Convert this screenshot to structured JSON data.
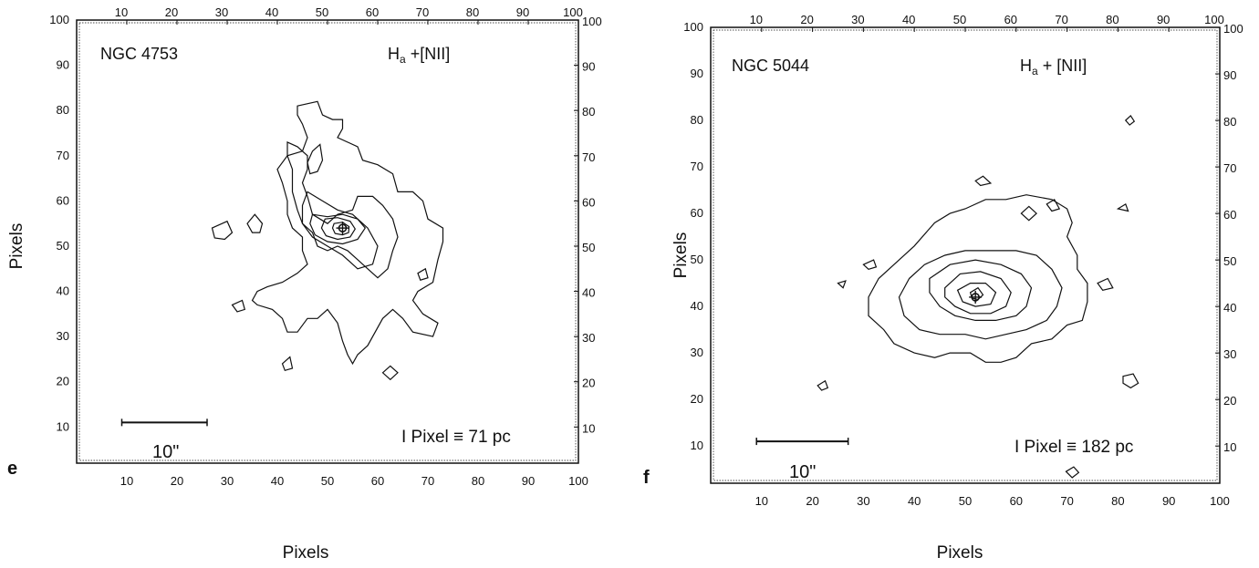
{
  "chart_data": [
    {
      "type": "contour",
      "panel_letter": "e",
      "object": "NGC 4753",
      "line_prefix": "H",
      "line_sub": "a",
      "line_suffix": " +[NII]",
      "scale_note": "I Pixel ≡ 71 pc",
      "scale_bar_label": "10\"",
      "scale_bar_pixels": [
        9,
        26
      ],
      "xlabel": "Pixels",
      "ylabel": "Pixels",
      "xlim": [
        0,
        100
      ],
      "ylim": [
        2,
        100
      ],
      "xticks": [
        10,
        20,
        30,
        40,
        50,
        60,
        70,
        80,
        90,
        100
      ],
      "yticks": [
        10,
        20,
        30,
        40,
        50,
        60,
        70,
        80,
        90,
        100
      ],
      "nucleus": [
        53,
        54
      ],
      "contours": [
        [
          [
            44,
            81
          ],
          [
            48,
            82
          ],
          [
            49,
            79
          ],
          [
            51,
            78
          ],
          [
            53,
            78
          ],
          [
            53,
            76
          ],
          [
            52,
            74
          ],
          [
            56,
            72
          ],
          [
            57,
            69
          ],
          [
            60,
            68
          ],
          [
            63,
            66
          ],
          [
            64,
            62
          ],
          [
            67,
            62
          ],
          [
            69,
            60
          ],
          [
            70,
            56
          ],
          [
            73,
            54
          ],
          [
            73,
            51
          ],
          [
            72,
            47
          ],
          [
            71,
            42
          ],
          [
            68,
            40
          ],
          [
            67,
            38
          ],
          [
            69,
            35
          ],
          [
            72,
            33
          ],
          [
            71,
            30
          ],
          [
            67,
            31
          ],
          [
            65,
            34
          ],
          [
            63,
            36
          ],
          [
            61,
            34
          ],
          [
            58,
            28
          ],
          [
            56,
            26
          ],
          [
            55,
            24
          ],
          [
            54,
            26
          ],
          [
            53,
            29
          ],
          [
            52,
            33
          ],
          [
            50,
            36
          ],
          [
            48,
            34
          ],
          [
            46,
            34
          ],
          [
            44,
            31
          ],
          [
            42,
            31
          ],
          [
            41,
            34
          ],
          [
            39,
            36
          ],
          [
            36,
            37
          ],
          [
            35,
            38
          ],
          [
            36,
            40
          ],
          [
            38,
            41
          ],
          [
            41,
            42
          ],
          [
            44,
            44
          ],
          [
            46,
            46
          ],
          [
            45,
            49
          ],
          [
            45,
            52
          ],
          [
            43,
            54
          ],
          [
            42,
            57
          ],
          [
            42,
            60
          ],
          [
            41,
            64
          ],
          [
            40,
            67
          ],
          [
            42,
            70
          ],
          [
            45,
            71
          ],
          [
            46,
            74
          ],
          [
            45,
            77
          ],
          [
            44,
            79
          ]
        ],
        [
          [
            42,
            73
          ],
          [
            44,
            72
          ],
          [
            46,
            70
          ],
          [
            46,
            67
          ],
          [
            45,
            64
          ],
          [
            46,
            61
          ],
          [
            47,
            57
          ],
          [
            50,
            55
          ],
          [
            52,
            57
          ],
          [
            55,
            58
          ],
          [
            56,
            61
          ],
          [
            59,
            61
          ],
          [
            61,
            59
          ],
          [
            63,
            56
          ],
          [
            64,
            52
          ],
          [
            63,
            49
          ],
          [
            62,
            45
          ],
          [
            60,
            43
          ],
          [
            58,
            45
          ],
          [
            56,
            47
          ],
          [
            54,
            49
          ],
          [
            52,
            50
          ],
          [
            50,
            49
          ],
          [
            48,
            50
          ],
          [
            47,
            53
          ],
          [
            45,
            55
          ],
          [
            44,
            58
          ],
          [
            43,
            62
          ],
          [
            43,
            67
          ],
          [
            42,
            70
          ]
        ],
        [
          [
            46,
            62
          ],
          [
            49,
            60
          ],
          [
            52,
            58
          ],
          [
            55,
            57
          ],
          [
            58,
            54
          ],
          [
            60,
            50
          ],
          [
            59,
            46
          ],
          [
            56,
            45
          ],
          [
            53,
            48
          ],
          [
            50,
            50
          ],
          [
            47,
            52
          ],
          [
            45,
            55
          ],
          [
            45,
            59
          ]
        ],
        [
          [
            47,
            57
          ],
          [
            50,
            56.5
          ],
          [
            53,
            57
          ],
          [
            56,
            56
          ],
          [
            57.5,
            54
          ],
          [
            56,
            51.5
          ],
          [
            53,
            50.5
          ],
          [
            50,
            51
          ],
          [
            47.5,
            52.5
          ],
          [
            46.5,
            55
          ]
        ],
        [
          [
            49.5,
            56
          ],
          [
            52,
            56.3
          ],
          [
            54.5,
            55.5
          ],
          [
            55.5,
            53.8
          ],
          [
            54.5,
            52
          ],
          [
            52,
            51.5
          ],
          [
            49.7,
            52.3
          ],
          [
            48.8,
            54
          ]
        ],
        [
          [
            51.3,
            55
          ],
          [
            53,
            55.3
          ],
          [
            54.3,
            54.3
          ],
          [
            54.2,
            53
          ],
          [
            53,
            52.5
          ],
          [
            51.5,
            52.8
          ],
          [
            51,
            54
          ]
        ],
        [
          [
            47,
            71
          ],
          [
            48.5,
            72.5
          ],
          [
            49,
            69
          ],
          [
            48,
            66.5
          ],
          [
            46.5,
            66
          ],
          [
            46,
            68.5
          ]
        ],
        [
          [
            34,
            55
          ],
          [
            35.5,
            57
          ],
          [
            37,
            55
          ],
          [
            36.5,
            53
          ],
          [
            35,
            53
          ]
        ],
        [
          [
            27,
            54
          ],
          [
            30,
            55.5
          ],
          [
            31,
            53
          ],
          [
            29.5,
            51.5
          ],
          [
            27.5,
            51.8
          ]
        ],
        [
          [
            41,
            24
          ],
          [
            42.5,
            25.5
          ],
          [
            43,
            23
          ],
          [
            41.5,
            22.5
          ]
        ],
        [
          [
            61,
            22
          ],
          [
            62.5,
            23.5
          ],
          [
            64,
            22
          ],
          [
            62.5,
            20.5
          ]
        ],
        [
          [
            68,
            44
          ],
          [
            69.5,
            45
          ],
          [
            70,
            43
          ],
          [
            68.5,
            42.5
          ]
        ],
        [
          [
            31,
            37
          ],
          [
            33,
            38
          ],
          [
            33.5,
            36
          ],
          [
            32,
            35.5
          ]
        ]
      ]
    },
    {
      "type": "contour",
      "panel_letter": "f",
      "object": "NGC 5044",
      "line_prefix": "H",
      "line_sub": "a",
      "line_suffix": " + [NII]",
      "scale_note": "I Pixel ≡ 182 pc",
      "scale_bar_label": "10\"",
      "scale_bar_pixels": [
        9,
        27
      ],
      "xlabel": "Pixels",
      "ylabel": "Pixels",
      "xlim": [
        0,
        100
      ],
      "ylim": [
        2,
        100
      ],
      "xticks": [
        10,
        20,
        30,
        40,
        50,
        60,
        70,
        80,
        90,
        100
      ],
      "yticks": [
        10,
        20,
        30,
        40,
        50,
        60,
        70,
        80,
        90,
        100
      ],
      "nucleus": [
        52,
        42
      ],
      "contours": [
        [
          [
            36,
            49
          ],
          [
            40,
            53
          ],
          [
            44,
            58
          ],
          [
            47,
            60
          ],
          [
            50,
            61
          ],
          [
            54,
            63
          ],
          [
            58,
            63
          ],
          [
            62,
            64
          ],
          [
            67,
            63
          ],
          [
            70,
            61
          ],
          [
            71,
            58
          ],
          [
            70,
            55
          ],
          [
            72,
            51
          ],
          [
            72,
            48
          ],
          [
            74,
            45
          ],
          [
            74,
            41
          ],
          [
            73,
            37
          ],
          [
            70,
            36
          ],
          [
            67,
            33
          ],
          [
            63,
            32
          ],
          [
            60,
            29
          ],
          [
            57,
            28
          ],
          [
            54,
            28
          ],
          [
            51,
            30
          ],
          [
            47,
            30
          ],
          [
            44,
            29
          ],
          [
            40,
            30
          ],
          [
            36,
            32
          ],
          [
            34,
            35
          ],
          [
            31,
            38
          ],
          [
            31,
            42
          ],
          [
            33,
            46
          ]
        ],
        [
          [
            39,
            46
          ],
          [
            42,
            49
          ],
          [
            46,
            51
          ],
          [
            50,
            52
          ],
          [
            55,
            52
          ],
          [
            60,
            52
          ],
          [
            64,
            51
          ],
          [
            67,
            48
          ],
          [
            69,
            44
          ],
          [
            68,
            40
          ],
          [
            66,
            37
          ],
          [
            62,
            35
          ],
          [
            58,
            34
          ],
          [
            54,
            33
          ],
          [
            50,
            34
          ],
          [
            45,
            34
          ],
          [
            41,
            35
          ],
          [
            38,
            38
          ],
          [
            37,
            42
          ]
        ],
        [
          [
            43,
            46
          ],
          [
            47,
            49
          ],
          [
            52,
            50
          ],
          [
            57,
            49
          ],
          [
            61,
            47
          ],
          [
            63,
            44
          ],
          [
            62,
            40
          ],
          [
            60,
            38
          ],
          [
            56,
            37
          ],
          [
            52,
            37
          ],
          [
            48,
            38
          ],
          [
            45,
            40
          ],
          [
            43,
            43
          ]
        ],
        [
          [
            46,
            44
          ],
          [
            49,
            47
          ],
          [
            53,
            47.5
          ],
          [
            57,
            46
          ],
          [
            59,
            43
          ],
          [
            58,
            40
          ],
          [
            55,
            38.5
          ],
          [
            51,
            38.5
          ],
          [
            48,
            40
          ],
          [
            46,
            42
          ]
        ],
        [
          [
            48.5,
            43.5
          ],
          [
            51,
            45
          ],
          [
            54,
            45
          ],
          [
            56,
            43
          ],
          [
            55,
            40.5
          ],
          [
            52,
            40
          ],
          [
            49.5,
            41
          ]
        ],
        [
          [
            51,
            43
          ],
          [
            52.5,
            44
          ],
          [
            53.5,
            42.5
          ],
          [
            52.5,
            41.5
          ],
          [
            51.3,
            41.8
          ]
        ],
        [
          [
            61,
            60
          ],
          [
            62.5,
            61.5
          ],
          [
            64,
            60
          ],
          [
            62.5,
            58.5
          ]
        ],
        [
          [
            52,
            67
          ],
          [
            53.5,
            68
          ],
          [
            55,
            66.5
          ],
          [
            53,
            66
          ]
        ],
        [
          [
            66,
            62
          ],
          [
            67.5,
            63
          ],
          [
            68.5,
            61
          ],
          [
            67,
            60.5
          ]
        ],
        [
          [
            76,
            45
          ],
          [
            78,
            46
          ],
          [
            79,
            44
          ],
          [
            77,
            43.5
          ]
        ],
        [
          [
            81,
            25
          ],
          [
            83,
            25.5
          ],
          [
            84,
            23.5
          ],
          [
            82.5,
            22.5
          ],
          [
            81,
            23.5
          ]
        ],
        [
          [
            69.8,
            4.5
          ],
          [
            71.3,
            5.5
          ],
          [
            72.3,
            4.3
          ],
          [
            71,
            3.2
          ]
        ],
        [
          [
            80,
            61
          ],
          [
            81.5,
            62
          ],
          [
            82,
            60.5
          ]
        ],
        [
          [
            81.5,
            80
          ],
          [
            82.5,
            81
          ],
          [
            83.2,
            79.8
          ],
          [
            82.3,
            79
          ]
        ],
        [
          [
            25,
            45
          ],
          [
            26.5,
            45.5
          ],
          [
            26,
            44
          ]
        ],
        [
          [
            21,
            23
          ],
          [
            22.5,
            24
          ],
          [
            23,
            22.5
          ],
          [
            21.8,
            22
          ]
        ],
        [
          [
            30,
            49
          ],
          [
            32,
            50
          ],
          [
            32.5,
            48.5
          ],
          [
            31,
            48
          ]
        ]
      ]
    }
  ]
}
